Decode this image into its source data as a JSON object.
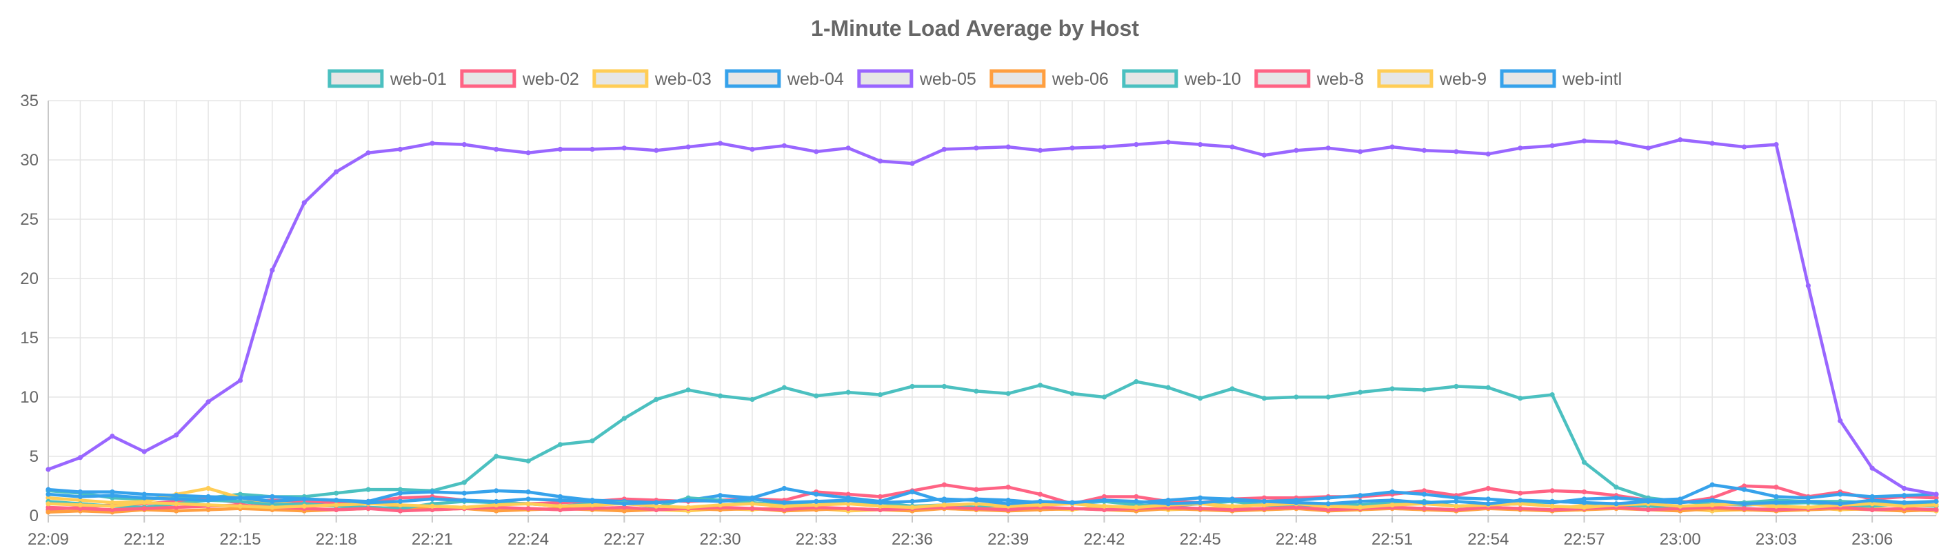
{
  "chart_data": {
    "type": "line",
    "title": "1-Minute Load Average by Host",
    "xlabel": "",
    "ylabel": "",
    "ylim": [
      0,
      35
    ],
    "yticks": [
      0,
      5,
      10,
      15,
      20,
      25,
      30,
      35
    ],
    "xtick_labels": [
      "22:09",
      "22:12",
      "22:15",
      "22:18",
      "22:21",
      "22:24",
      "22:27",
      "22:30",
      "22:33",
      "22:36",
      "22:39",
      "22:42",
      "22:45",
      "22:48",
      "22:51",
      "22:54",
      "22:57",
      "23:00",
      "23:03",
      "23:06"
    ],
    "x": [
      "22:09",
      "22:10",
      "22:11",
      "22:12",
      "22:13",
      "22:14",
      "22:15",
      "22:16",
      "22:17",
      "22:18",
      "22:19",
      "22:20",
      "22:21",
      "22:22",
      "22:23",
      "22:24",
      "22:25",
      "22:26",
      "22:27",
      "22:28",
      "22:29",
      "22:30",
      "22:31",
      "22:32",
      "22:33",
      "22:34",
      "22:35",
      "22:36",
      "22:37",
      "22:38",
      "22:39",
      "22:40",
      "22:41",
      "22:42",
      "22:43",
      "22:44",
      "22:45",
      "22:46",
      "22:47",
      "22:48",
      "22:49",
      "22:50",
      "22:51",
      "22:52",
      "22:53",
      "22:54",
      "22:55",
      "22:56",
      "22:57",
      "22:58",
      "22:59",
      "23:00",
      "23:01",
      "23:02",
      "23:03",
      "23:04",
      "23:05",
      "23:06",
      "23:07",
      "23:08"
    ],
    "grid": true,
    "legend_position": "top",
    "series": [
      {
        "name": "web-01",
        "color": "#4bc0c0",
        "values": [
          2.1,
          1.9,
          1.5,
          1.4,
          1.6,
          1.5,
          1.8,
          1.6,
          1.6,
          1.9,
          2.2,
          2.2,
          2.1,
          2.8,
          5.0,
          4.6,
          6.0,
          6.3,
          8.2,
          9.8,
          10.6,
          10.1,
          9.8,
          10.8,
          10.1,
          10.4,
          10.2,
          10.9,
          10.9,
          10.5,
          10.3,
          11.0,
          10.3,
          10.0,
          11.3,
          10.8,
          9.9,
          10.7,
          9.9,
          10.0,
          10.0,
          10.4,
          10.7,
          10.6,
          10.9,
          10.8,
          9.9,
          10.2,
          4.5,
          2.4,
          1.5,
          1.2,
          1.0,
          1.1,
          1.3,
          1.2,
          1.2,
          1.1,
          0.9,
          0.8
        ]
      },
      {
        "name": "web-02",
        "color": "#ff6384",
        "values": [
          0.5,
          0.7,
          0.9,
          1.0,
          1.2,
          1.4,
          1.1,
          1.3,
          1.2,
          1.1,
          1.2,
          1.5,
          1.6,
          1.3,
          1.1,
          1.0,
          1.1,
          1.2,
          1.4,
          1.3,
          1.2,
          1.3,
          1.4,
          1.3,
          2.0,
          1.8,
          1.6,
          2.1,
          2.6,
          2.2,
          2.4,
          1.8,
          1.0,
          1.6,
          1.6,
          1.2,
          1.1,
          1.4,
          1.5,
          1.5,
          1.6,
          1.6,
          1.8,
          2.1,
          1.7,
          2.3,
          1.9,
          2.1,
          2.0,
          1.7,
          1.3,
          1.1,
          1.5,
          2.5,
          2.4,
          1.6,
          2.0,
          1.4,
          1.6,
          1.5
        ]
      },
      {
        "name": "web-03",
        "color": "#ffcd56",
        "values": [
          1.5,
          1.3,
          1.1,
          1.2,
          1.8,
          2.3,
          1.5,
          1.1,
          0.9,
          0.8,
          0.7,
          0.6,
          0.8,
          0.7,
          0.5,
          0.6,
          0.5,
          0.7,
          0.6,
          0.5,
          0.4,
          0.6,
          0.5,
          0.7,
          0.6,
          0.4,
          0.5,
          0.8,
          0.6,
          0.5,
          0.7,
          0.6,
          0.5,
          0.8,
          0.7,
          0.5,
          0.6,
          0.7,
          0.5,
          0.6,
          0.8,
          0.6,
          0.7,
          0.6,
          0.5,
          0.7,
          0.6,
          0.5,
          0.9,
          0.7,
          0.5,
          0.6,
          0.4,
          0.5,
          0.6,
          0.7,
          0.5,
          0.6,
          0.5,
          0.4
        ]
      },
      {
        "name": "web-04",
        "color": "#36a2eb",
        "values": [
          2.2,
          2.0,
          2.0,
          1.8,
          1.7,
          1.6,
          1.5,
          1.6,
          1.4,
          1.3,
          1.2,
          1.9,
          2.0,
          1.9,
          2.1,
          2.0,
          1.6,
          1.3,
          1.2,
          1.1,
          1.3,
          1.7,
          1.5,
          2.3,
          1.8,
          1.5,
          1.2,
          2.0,
          1.2,
          1.4,
          1.3,
          1.1,
          1.0,
          1.2,
          1.1,
          1.3,
          1.5,
          1.4,
          1.2,
          1.3,
          1.5,
          1.7,
          2.0,
          1.8,
          1.5,
          1.4,
          1.2,
          1.1,
          1.4,
          1.5,
          1.3,
          1.4,
          2.6,
          2.2,
          1.6,
          1.5,
          1.8,
          1.6,
          1.7,
          1.8
        ]
      },
      {
        "name": "web-05",
        "color": "#9966ff",
        "values": [
          3.9,
          4.9,
          6.7,
          5.4,
          6.8,
          9.6,
          11.4,
          20.7,
          26.4,
          29.0,
          30.6,
          30.9,
          31.4,
          31.3,
          30.9,
          30.6,
          30.9,
          30.9,
          31.0,
          30.8,
          31.1,
          31.4,
          30.9,
          31.2,
          30.7,
          31.0,
          29.9,
          29.7,
          30.9,
          31.0,
          31.1,
          30.8,
          31.0,
          31.1,
          31.3,
          31.5,
          31.3,
          31.1,
          30.4,
          30.8,
          31.0,
          30.7,
          31.1,
          30.8,
          30.7,
          30.5,
          31.0,
          31.2,
          31.6,
          31.5,
          31.0,
          31.7,
          31.4,
          31.1,
          31.3,
          19.4,
          8.0,
          4.0,
          2.3,
          1.8
        ]
      },
      {
        "name": "web-06",
        "color": "#ff9f40",
        "values": [
          0.3,
          0.4,
          0.3,
          0.5,
          0.4,
          0.5,
          0.6,
          0.5,
          0.4,
          0.5,
          0.6,
          0.7,
          0.5,
          0.6,
          0.4,
          0.5,
          0.6,
          0.5,
          0.4,
          0.5,
          0.6,
          0.5,
          0.6,
          0.4,
          0.5,
          0.6,
          0.5,
          0.4,
          0.6,
          0.5,
          0.4,
          0.5,
          0.6,
          0.5,
          0.4,
          0.6,
          0.5,
          0.4,
          0.5,
          0.6,
          0.4,
          0.5,
          0.6,
          0.5,
          0.4,
          0.6,
          0.5,
          0.4,
          0.5,
          0.6,
          0.5,
          0.4,
          0.6,
          0.5,
          0.4,
          0.5,
          0.6,
          0.5,
          0.4,
          0.5
        ]
      },
      {
        "name": "web-10",
        "color": "#4bc0c0",
        "values": [
          1.2,
          1.0,
          0.8,
          0.7,
          1.0,
          1.3,
          1.2,
          0.9,
          1.0,
          0.8,
          0.7,
          0.6,
          1.0,
          1.2,
          1.1,
          1.0,
          0.8,
          1.0,
          1.1,
          0.7,
          1.5,
          1.3,
          1.1,
          0.9,
          1.2,
          1.0,
          1.1,
          0.8,
          0.9,
          0.7,
          1.0,
          0.9,
          1.1,
          1.2,
          0.9,
          0.8,
          1.0,
          1.2,
          0.9,
          0.8,
          1.0,
          0.9,
          1.1,
          1.2,
          0.8,
          0.9,
          1.0,
          1.2,
          1.1,
          0.9,
          0.8,
          0.7,
          1.0,
          0.9,
          1.0,
          1.1,
          0.9,
          0.8,
          1.0,
          0.9
        ]
      },
      {
        "name": "web-8",
        "color": "#ff6384",
        "values": [
          0.7,
          0.6,
          0.5,
          0.6,
          0.7,
          0.8,
          0.9,
          0.7,
          0.6,
          0.5,
          0.6,
          0.4,
          0.5,
          0.6,
          0.7,
          0.6,
          0.5,
          0.6,
          0.7,
          0.5,
          0.6,
          0.7,
          0.6,
          0.5,
          0.7,
          0.6,
          0.5,
          0.6,
          0.7,
          0.6,
          0.5,
          0.7,
          0.6,
          0.5,
          0.6,
          0.7,
          0.6,
          0.5,
          0.6,
          0.7,
          0.5,
          0.6,
          0.7,
          0.6,
          0.5,
          0.7,
          0.6,
          0.5,
          0.6,
          0.7,
          0.5,
          0.6,
          0.7,
          0.6,
          0.5,
          0.6,
          0.7,
          0.5,
          0.6,
          0.5
        ]
      },
      {
        "name": "web-9",
        "color": "#ffcd56",
        "values": [
          1.0,
          0.9,
          0.8,
          1.1,
          1.0,
          0.9,
          0.8,
          0.7,
          0.8,
          0.9,
          1.0,
          0.9,
          0.8,
          0.7,
          0.9,
          1.0,
          0.8,
          0.9,
          1.0,
          0.8,
          0.7,
          0.9,
          1.0,
          0.8,
          0.9,
          1.0,
          0.8,
          0.7,
          0.9,
          1.0,
          0.8,
          0.9,
          1.0,
          0.8,
          0.7,
          0.9,
          1.0,
          0.8,
          0.9,
          1.0,
          0.8,
          0.7,
          0.9,
          1.0,
          0.8,
          0.9,
          1.0,
          0.8,
          0.7,
          0.9,
          1.0,
          0.8,
          0.9,
          1.0,
          0.8,
          0.7,
          0.9,
          1.0,
          0.8,
          0.9
        ]
      },
      {
        "name": "web-intl",
        "color": "#36a2eb",
        "values": [
          1.8,
          1.6,
          1.7,
          1.5,
          1.4,
          1.3,
          1.5,
          1.2,
          1.4,
          1.3,
          1.1,
          1.2,
          1.4,
          1.3,
          1.2,
          1.4,
          1.3,
          1.2,
          1.0,
          1.1,
          1.3,
          1.2,
          1.4,
          1.1,
          1.2,
          1.3,
          1.1,
          1.2,
          1.4,
          1.3,
          1.0,
          1.2,
          1.1,
          1.3,
          1.2,
          1.0,
          1.1,
          1.3,
          1.2,
          1.1,
          1.0,
          1.2,
          1.3,
          1.1,
          1.2,
          1.0,
          1.3,
          1.2,
          1.1,
          1.0,
          1.2,
          1.1,
          1.3,
          1.0,
          1.1,
          1.2,
          1.0,
          1.3,
          1.1,
          1.2
        ]
      }
    ]
  }
}
